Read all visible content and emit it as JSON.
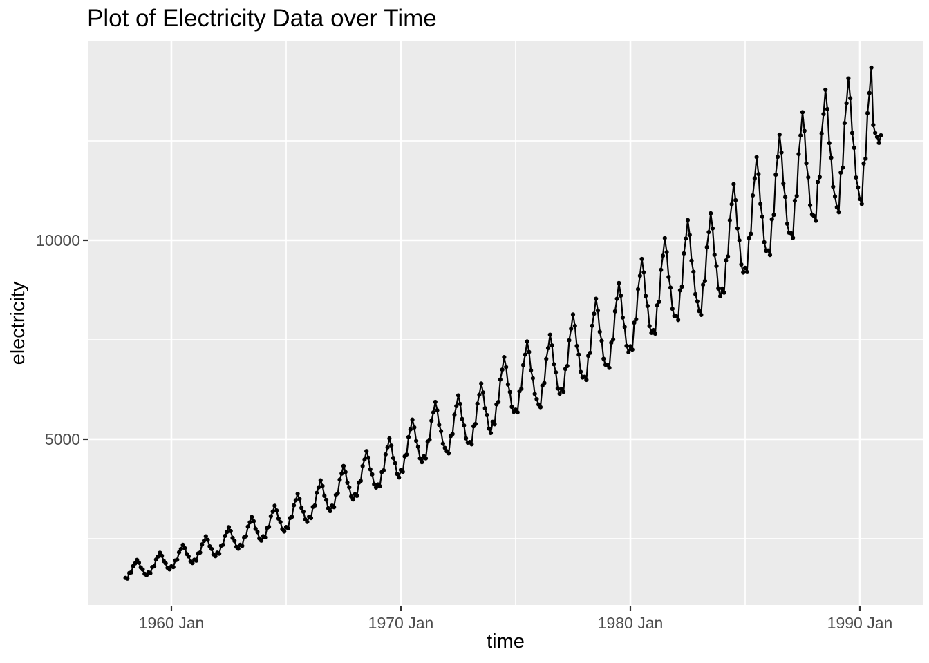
{
  "chart_data": {
    "type": "line",
    "title": "Plot of Electricity Data over Time",
    "xlabel": "time",
    "ylabel": "electricity",
    "series_name": "electricity",
    "start": {
      "year": 1958,
      "month": 1
    },
    "frequency": 12,
    "values": [
      1514,
      1496,
      1636,
      1653,
      1810,
      1879,
      1966,
      1897,
      1775,
      1723,
      1618,
      1583,
      1653,
      1634,
      1786,
      1805,
      1976,
      2052,
      2147,
      2071,
      1938,
      1881,
      1767,
      1729,
      1805,
      1785,
      1951,
      1971,
      2158,
      2241,
      2345,
      2262,
      2117,
      2054,
      1930,
      1888,
      1971,
      1948,
      2129,
      2152,
      2356,
      2446,
      2559,
      2469,
      2310,
      2242,
      2106,
      2061,
      2149,
      2124,
      2322,
      2347,
      2569,
      2668,
      2791,
      2692,
      2519,
      2445,
      2297,
      2248,
      2345,
      2318,
      2533,
      2560,
      2803,
      2911,
      3045,
      2938,
      2749,
      2668,
      2506,
      2452,
      2562,
      2533,
      2768,
      2798,
      3063,
      3181,
      3328,
      3210,
      3004,
      2916,
      2739,
      2680,
      2793,
      2761,
      3017,
      3050,
      3338,
      3467,
      3627,
      3499,
      3274,
      3178,
      2985,
      2921,
      3054,
      3019,
      3299,
      3335,
      3650,
      3791,
      3966,
      3826,
      3580,
      3475,
      3264,
      3194,
      3332,
      3294,
      3600,
      3639,
      3983,
      4136,
      4328,
      4175,
      3907,
      3792,
      3562,
      3485,
      3619,
      3578,
      3910,
      3952,
      4326,
      4493,
      4701,
      4534,
      4243,
      4118,
      3869,
      3786,
      3863,
      3818,
      4174,
      4218,
      4618,
      4795,
      5017,
      4840,
      4529,
      4396,
      4129,
      4040,
      4228,
      4180,
      4568,
      4617,
      5054,
      5249,
      5492,
      5297,
      4957,
      4811,
      4520,
      4423,
      4572,
      4519,
      4940,
      4992,
      5465,
      5675,
      5938,
      5728,
      5360,
      5202,
      4887,
      4782,
      4698,
      4644,
      5076,
      5130,
      5616,
      5832,
      6102,
      5886,
      5508,
      5346,
      5022,
      4914,
      4928,
      4872,
      5325,
      5382,
      5892,
      6118,
      6401,
      6175,
      5778,
      5608,
      5268,
      5155,
      5438,
      5375,
      5875,
      5938,
      6500,
      6750,
      7063,
      6813,
      6375,
      6188,
      5813,
      5688,
      5742,
      5676,
      6204,
      6270,
      6864,
      7128,
      7458,
      7194,
      6732,
      6534,
      6138,
      6006,
      5873,
      5805,
      6345,
      6413,
      7020,
      7290,
      7628,
      7358,
      6885,
      6683,
      6278,
      6143,
      6264,
      6192,
      6768,
      6840,
      7488,
      7776,
      8136,
      7848,
      7344,
      7128,
      6696,
      6552,
      6569,
      6493,
      7097,
      7173,
      7852,
      8154,
      8532,
      8230,
      7701,
      7475,
      7022,
      6871,
      6873,
      6794,
      7426,
      7505,
      8216,
      8532,
      8927,
      8611,
      8058,
      7821,
      7347,
      7189,
      7338,
      7254,
      7929,
      8013,
      8772,
      9110,
      9532,
      9194,
      8604,
      8351,
      7845,
      7676,
      7743,
      7654,
      8366,
      8455,
      9256,
      9612,
      10057,
      9701,
      9078,
      8811,
      8277,
      8099,
      8091,
      7998,
      8742,
      8835,
      9672,
      10044,
      10509,
      10137,
      9486,
      9207,
      8649,
      8463,
      8222,
      8127,
      8883,
      8978,
      9828,
      10206,
      10679,
      10301,
      9639,
      9356,
      8789,
      8600,
      8787,
      8686,
      9494,
      9595,
      10504,
      10908,
      11413,
      11009,
      10302,
      9999,
      9393,
      9191,
      9309,
      9202,
      10058,
      10165,
      11128,
      11556,
      12091,
      11663,
      10914,
      10593,
      9951,
      9737,
      9744,
      9632,
      10528,
      10640,
      11648,
      12096,
      12656,
      12208,
      11424,
      11088,
      10416,
      10192,
      10179,
      10062,
      10998,
      11115,
      12168,
      12636,
      13221,
      12753,
      11934,
      11583,
      10881,
      10647,
      10614,
      10492,
      11468,
      11590,
      12688,
      13176,
      13786,
      13298,
      12444,
      12078,
      11346,
      11102,
      10832,
      10707,
      11703,
      11828,
      12948,
      13446,
      14069,
      13571,
      12699,
      12326,
      11579,
      11330,
      11040,
      10913,
      11929,
      12056,
      13198,
      13705,
      14340,
      12900,
      12700,
      12600,
      12450,
      12640
    ],
    "x_ticks": [
      {
        "t": 1960.0,
        "label": "1960 Jan"
      },
      {
        "t": 1970.0,
        "label": "1970 Jan"
      },
      {
        "t": 1980.0,
        "label": "1980 Jan"
      },
      {
        "t": 1990.0,
        "label": "1990 Jan"
      }
    ],
    "x_minor_ticks": [
      1965.0,
      1975.0,
      1985.0
    ],
    "y_ticks": [
      {
        "v": 5000,
        "label": "5000"
      },
      {
        "v": 10000,
        "label": "10000"
      }
    ],
    "y_minor_ticks": [
      2500,
      7500,
      12500
    ],
    "xlim": [
      1956.386,
      1992.741
    ],
    "ylim": [
      833,
      15000
    ],
    "grid": true,
    "legend_position": "none",
    "style": {
      "panel_bg": "#EBEBEB",
      "grid_color": "#FFFFFF",
      "line_color": "#000000",
      "point_color": "#000000",
      "tick_color": "#333333",
      "tick_label_color": "#4D4D4D",
      "title_color": "#000000"
    }
  }
}
